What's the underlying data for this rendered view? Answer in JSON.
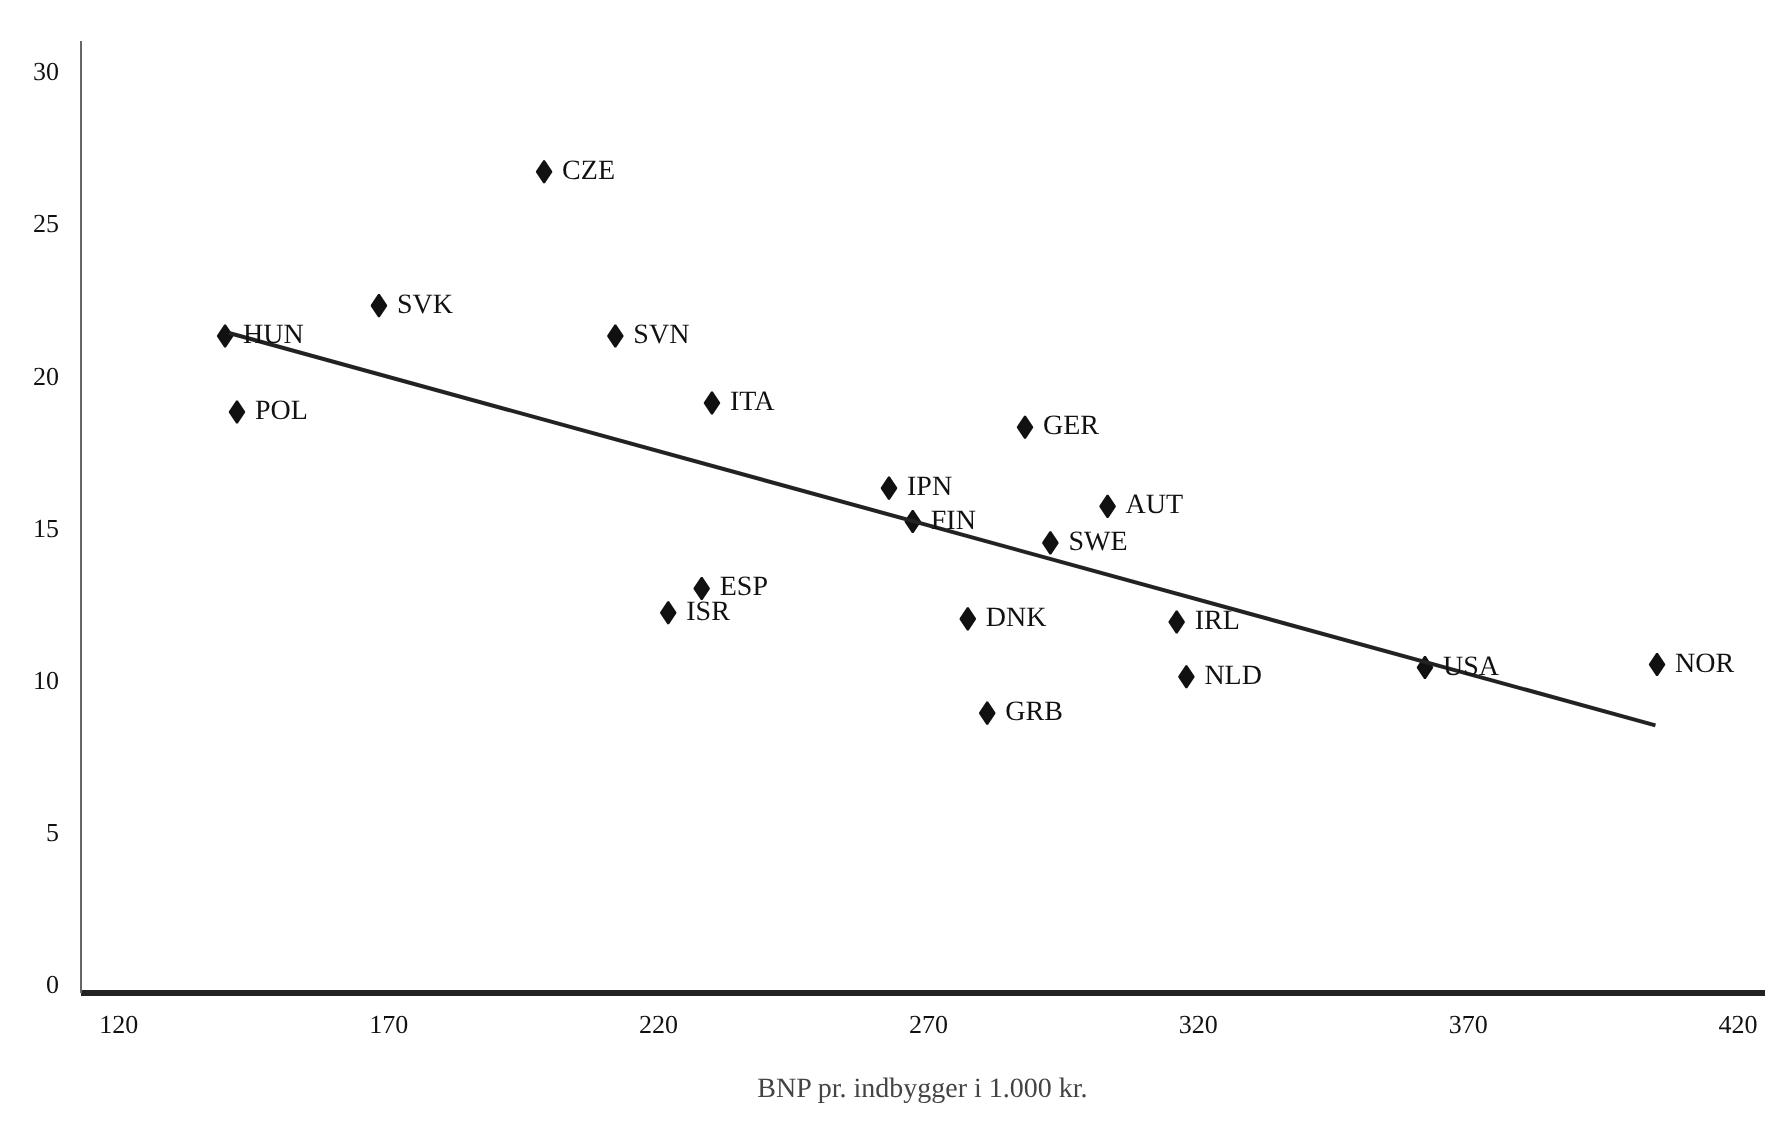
{
  "chart_data": {
    "type": "scatter",
    "xlabel": "BNP pr. indbygger i 1.000 kr.",
    "xlim": [
      113,
      425
    ],
    "ylim": [
      -0.3,
      31
    ],
    "xticks": [
      120,
      170,
      220,
      270,
      320,
      370,
      420
    ],
    "yticks": [
      0,
      5,
      10,
      15,
      20,
      25,
      30
    ],
    "grid": false,
    "marker": "diamond",
    "series": [
      {
        "color": "#111111",
        "x": [
          139.7,
          141.9,
          168.2,
          198.8,
          212.0,
          229.9,
          228.0,
          221.8,
          262.7,
          267.1,
          287.9,
          303.2,
          292.6,
          277.3,
          280.9,
          316.0,
          317.8,
          362.0,
          405.0
        ],
        "values": [
          21.3,
          18.8,
          22.3,
          26.7,
          21.3,
          19.1,
          13.0,
          12.2,
          16.3,
          15.2,
          18.3,
          15.7,
          14.5,
          12.0,
          8.9,
          11.9,
          10.1,
          10.4,
          10.5
        ]
      },
      {
        "type": "line",
        "color": "#222222",
        "line_style": "solid",
        "marker": "none",
        "x": [
          140.4,
          404.7
        ],
        "values": [
          21.4,
          8.5
        ]
      }
    ],
    "annotations": [
      {
        "text": "HUN",
        "x": 139.7,
        "y": 21.3
      },
      {
        "text": "POL",
        "x": 141.9,
        "y": 18.8
      },
      {
        "text": "SVK",
        "x": 168.2,
        "y": 22.3
      },
      {
        "text": "CZE",
        "x": 198.8,
        "y": 26.7
      },
      {
        "text": "SVN",
        "x": 212.0,
        "y": 21.3
      },
      {
        "text": "ITA",
        "x": 229.9,
        "y": 19.1
      },
      {
        "text": "ESP",
        "x": 228.0,
        "y": 13.0
      },
      {
        "text": "ISR",
        "x": 221.8,
        "y": 12.2
      },
      {
        "text": "IPN",
        "x": 262.7,
        "y": 16.3
      },
      {
        "text": "FIN",
        "x": 267.1,
        "y": 15.2
      },
      {
        "text": "GER",
        "x": 287.9,
        "y": 18.3
      },
      {
        "text": "AUT",
        "x": 303.2,
        "y": 15.7
      },
      {
        "text": "SWE",
        "x": 292.6,
        "y": 14.5
      },
      {
        "text": "DNK",
        "x": 277.3,
        "y": 12.0
      },
      {
        "text": "GRB",
        "x": 280.9,
        "y": 8.9
      },
      {
        "text": "IRL",
        "x": 316.0,
        "y": 11.9
      },
      {
        "text": "NLD",
        "x": 317.8,
        "y": 10.1
      },
      {
        "text": "USA",
        "x": 362.0,
        "y": 10.4
      },
      {
        "text": "NOR",
        "x": 405.0,
        "y": 10.5
      }
    ]
  }
}
